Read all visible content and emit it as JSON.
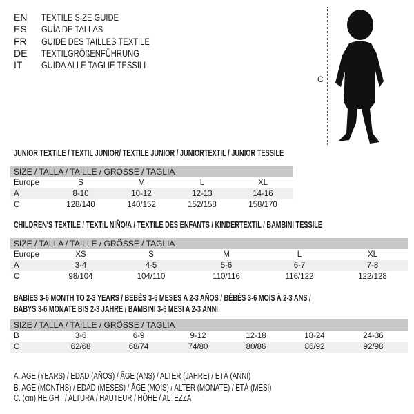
{
  "languages": [
    {
      "code": "EN",
      "name": "TEXTILE SIZE GUIDE"
    },
    {
      "code": "ES",
      "name": "GUÍA DE TALLAS"
    },
    {
      "code": "FR",
      "name": "GUIDE DES TAILLES TEXTILE"
    },
    {
      "code": "DE",
      "name": "TEXTILGRÖßENFÜHRUNG"
    },
    {
      "code": "IT",
      "name": "GUIDA ALLE TAGLIE TESSILI"
    }
  ],
  "figure": {
    "marker": "C"
  },
  "junior": {
    "title": "JUNIOR TEXTILE / TEXTIL JUNIOR/ TEXTILE JUNIOR / JUNIORTEXTIL / JUNIOR TESSILE",
    "header": "SIZE / TALLA / TAILLE / GRÖSSE / TAGLIA",
    "rows": [
      {
        "label": "Europe",
        "cells": [
          "S",
          "M",
          "L",
          "XL"
        ]
      },
      {
        "label": "A",
        "cells": [
          "8-10",
          "10-12",
          "12-13",
          "14-16"
        ]
      },
      {
        "label": "C",
        "cells": [
          "128/140",
          "140/152",
          "152/158",
          "158/170"
        ]
      }
    ]
  },
  "children": {
    "title": "CHILDREN'S TEXTILE / TEXTIL NIÑO/A / TEXTILE DES ENFANTS / KINDERTEXTIL / BAMBINI TESSILE",
    "header": "SIZE / TALLA / TAILLE / GRÖSSE / TAGLIA",
    "rows": [
      {
        "label": "Europe",
        "cells": [
          "XS",
          "S",
          "M",
          "L",
          "XL"
        ]
      },
      {
        "label": "A",
        "cells": [
          "3-4",
          "4-5",
          "5-6",
          "6-7",
          "7-8"
        ]
      },
      {
        "label": "C",
        "cells": [
          "98/104",
          "104/110",
          "110/116",
          "116/122",
          "122/128"
        ]
      }
    ]
  },
  "babies": {
    "title_line1": "BABIES 3-6 MONTH TO 2-3 YEARS / BEBÉS 3-6 MESES A 2-3 AÑOS / BÉBÉS 3-6 MOIS À 2-3 ANS /",
    "title_line2": "BABYS 3-6 MONATE BIS 2-3 JAHRE / BAMBINI 3-6 MESI A 2-3 ANNI",
    "header": "SIZE / TALLA / TAILLE / GRÖSSE / TAGLIA",
    "rows": [
      {
        "label": "B",
        "cells": [
          "3-6",
          "6-9",
          "9-12",
          "12-18",
          "18-24",
          "24-36"
        ]
      },
      {
        "label": "C",
        "cells": [
          "62/68",
          "68/74",
          "74/80",
          "80/86",
          "86/92",
          "92/98"
        ]
      }
    ]
  },
  "legend": [
    "A. AGE (YEARS) / EDAD (AÑOS) / ÂGE (ANS) / ALTER (JAHRE) / ETÀ (ANNI)",
    "B. AGE (MONTHS) / EDAD (MESES) / ÂGE (MOIS) / ALTER (MONATE) / ETÀ (MESI)",
    "C. (cm) HEIGHT / ALTURA / HAUTEUR / HÖHE / ALTEZZA"
  ]
}
